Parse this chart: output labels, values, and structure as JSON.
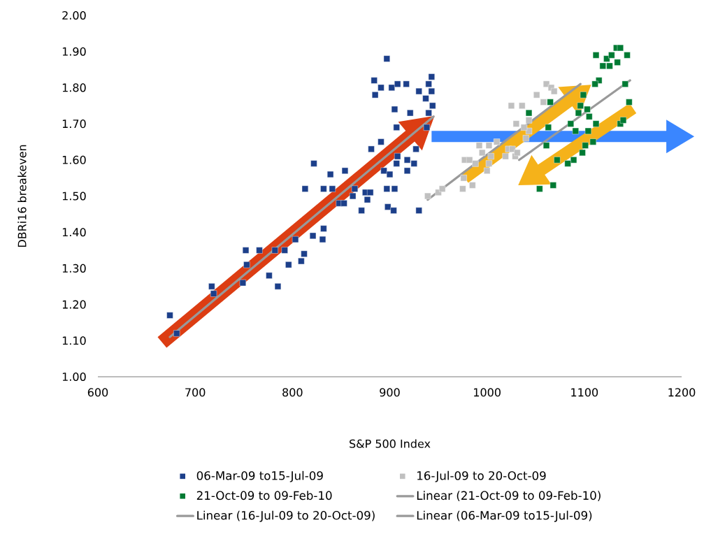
{
  "chart_data": {
    "type": "scatter",
    "xlabel": "S&P 500 Index",
    "ylabel": "DBRi16 breakeven",
    "xlim": [
      600,
      1200
    ],
    "xticks": [
      600,
      700,
      800,
      900,
      1000,
      1100,
      1200
    ],
    "ylim": [
      1.0,
      2.0
    ],
    "yticks": [
      {
        "value": 1.0,
        "label": "1.00"
      },
      {
        "value": 1.1,
        "label": "1.10"
      },
      {
        "value": 1.2,
        "label": "1.20"
      },
      {
        "value": 1.3,
        "label": "1.30"
      },
      {
        "value": 1.4,
        "label": "1.40"
      },
      {
        "value": 1.5,
        "label": "1.50"
      },
      {
        "value": 1.6,
        "label": "1.60"
      },
      {
        "value": 1.7,
        "label": "1.70"
      },
      {
        "value": 1.8,
        "label": "1.80"
      },
      {
        "value": 1.9,
        "label": "1.90"
      },
      {
        "value": 2.0,
        "label": "2.00"
      }
    ],
    "marker": "square",
    "legend": "bottom",
    "grid": false,
    "series": [
      {
        "name": "06-Mar-09 to15-Jul-09",
        "color": "#1c3f8a",
        "x": [
          674,
          681,
          717,
          719,
          752,
          766,
          753,
          749,
          776,
          785,
          782,
          792,
          796,
          803,
          809,
          812,
          821,
          831,
          832,
          897,
          884,
          891,
          885,
          902,
          908,
          917,
          943,
          940,
          943,
          930,
          937,
          944,
          905,
          921,
          940,
          938,
          907,
          891,
          881,
          927,
          908,
          918,
          925,
          907,
          918,
          894,
          900,
          822,
          854,
          839,
          813,
          832,
          841,
          864,
          875,
          897,
          905,
          848,
          853,
          862,
          877,
          871,
          898,
          904,
          930,
          880
        ],
        "values": [
          1.17,
          1.12,
          1.25,
          1.23,
          1.35,
          1.35,
          1.31,
          1.26,
          1.28,
          1.25,
          1.35,
          1.35,
          1.31,
          1.38,
          1.32,
          1.34,
          1.39,
          1.38,
          1.41,
          1.88,
          1.82,
          1.8,
          1.78,
          1.8,
          1.81,
          1.81,
          1.83,
          1.81,
          1.79,
          1.79,
          1.77,
          1.75,
          1.74,
          1.73,
          1.73,
          1.69,
          1.69,
          1.65,
          1.63,
          1.63,
          1.61,
          1.6,
          1.59,
          1.59,
          1.57,
          1.57,
          1.56,
          1.59,
          1.57,
          1.56,
          1.52,
          1.52,
          1.52,
          1.52,
          1.51,
          1.52,
          1.52,
          1.48,
          1.48,
          1.5,
          1.49,
          1.46,
          1.47,
          1.46,
          1.46,
          1.51
        ]
      },
      {
        "name": "16-Jul-09  to 20-Oct-09",
        "color": "#c0c0c0",
        "x": [
          939,
          950,
          954,
          975,
          985,
          976,
          977,
          982,
          988,
          1000,
          1002,
          1004,
          992,
          995,
          1002,
          1010,
          1019,
          1022,
          1026,
          1029,
          1025,
          1036,
          1030,
          1051,
          1061,
          1066,
          1040,
          1043,
          1069,
          1058,
          1043,
          1038,
          1031
        ],
        "values": [
          1.5,
          1.51,
          1.52,
          1.52,
          1.53,
          1.55,
          1.6,
          1.6,
          1.59,
          1.57,
          1.59,
          1.61,
          1.64,
          1.62,
          1.64,
          1.65,
          1.61,
          1.63,
          1.63,
          1.61,
          1.75,
          1.75,
          1.7,
          1.78,
          1.81,
          1.8,
          1.66,
          1.68,
          1.79,
          1.76,
          1.71,
          1.69,
          1.62
        ]
      },
      {
        "name": "21-Oct-09 to 09-Feb-10",
        "color": "#007a33",
        "x": [
          1112,
          1123,
          1128,
          1133,
          1137,
          1144,
          1119,
          1126,
          1134,
          1115,
          1111,
          1142,
          1146,
          1099,
          1096,
          1103,
          1043,
          1065,
          1094,
          1105,
          1112,
          1086,
          1063,
          1137,
          1140,
          1109,
          1101,
          1098,
          1089,
          1083,
          1061,
          1068,
          1054,
          1072,
          1104,
          1091
        ],
        "values": [
          1.89,
          1.88,
          1.89,
          1.91,
          1.91,
          1.89,
          1.86,
          1.86,
          1.87,
          1.82,
          1.81,
          1.81,
          1.76,
          1.78,
          1.75,
          1.74,
          1.73,
          1.76,
          1.73,
          1.72,
          1.7,
          1.7,
          1.69,
          1.7,
          1.71,
          1.65,
          1.64,
          1.62,
          1.6,
          1.59,
          1.64,
          1.53,
          1.52,
          1.6,
          1.68,
          1.68
        ]
      },
      {
        "name": "Linear (21-Oct-09 to 09-Feb-10)",
        "type": "line",
        "marker": "none",
        "color": "#999999",
        "x": [
          1033,
          1147
        ],
        "values": [
          1.6,
          1.82
        ]
      },
      {
        "name": "Linear (16-Jul-09  to 20-Oct-09)",
        "type": "line",
        "marker": "none",
        "color": "#999999",
        "x": [
          939,
          1096
        ],
        "values": [
          1.49,
          1.81
        ]
      },
      {
        "name": "Linear (06-Mar-09 to15-Jul-09)",
        "type": "line",
        "marker": "none",
        "color": "#999999",
        "x": [
          674,
          945
        ],
        "values": [
          1.11,
          1.72
        ]
      }
    ]
  }
}
